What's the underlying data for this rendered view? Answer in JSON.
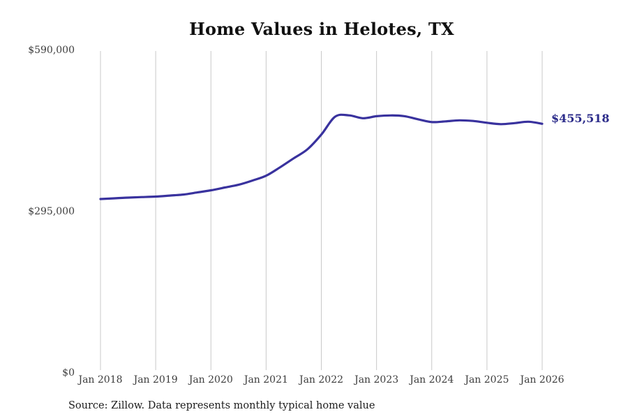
{
  "chart_data": {
    "type": "line",
    "title": "Home Values in Helotes, TX",
    "xlabel": "",
    "ylabel": "",
    "ylim": [
      0,
      590000
    ],
    "x_range": [
      "Jan 2018",
      "Jan 2026"
    ],
    "grid": "vertical-yearly-gridlines",
    "legend": "none",
    "x_ticks": [
      "Jan 2018",
      "Jan 2019",
      "Jan 2020",
      "Jan 2021",
      "Jan 2022",
      "Jan 2023",
      "Jan 2024",
      "Jan 2025",
      "Jan 2026"
    ],
    "y_ticks": [
      {
        "label": "$590,000",
        "value": 590000
      },
      {
        "label": "$295,000",
        "value": 295000
      },
      {
        "label": "$0",
        "value": 0
      }
    ],
    "series": [
      {
        "name": "Monthly typical home value",
        "color": "#39329e",
        "x_months_from_jan_2018": [
          0,
          3,
          6,
          9,
          12,
          15,
          18,
          21,
          24,
          27,
          30,
          33,
          36,
          39,
          42,
          45,
          48,
          51,
          54,
          57,
          60,
          63,
          66,
          69,
          72,
          75,
          78,
          81,
          84,
          87,
          90,
          93,
          96
        ],
        "values": [
          318000,
          319300,
          320600,
          321500,
          322400,
          324200,
          326200,
          330000,
          333900,
          339000,
          344100,
          351700,
          360600,
          375900,
          392500,
          409000,
          435800,
          468500,
          471000,
          465800,
          469400,
          470900,
          469600,
          463800,
          458700,
          460000,
          461900,
          460700,
          457400,
          454900,
          456800,
          459400,
          455518
        ]
      }
    ],
    "annotation": {
      "label": "$455,518",
      "value": 455518,
      "color": "#2b2b8a"
    },
    "source_note": "Source: Zillow. Data represents monthly typical home value",
    "colors": {
      "line": "#39329e",
      "annotation": "#2b2b8a",
      "grid": "#c9c9c9",
      "tick_text": "#3d3d3d",
      "title_text": "#111111",
      "source_text": "#1c1c1c",
      "background": "#ffffff"
    }
  }
}
